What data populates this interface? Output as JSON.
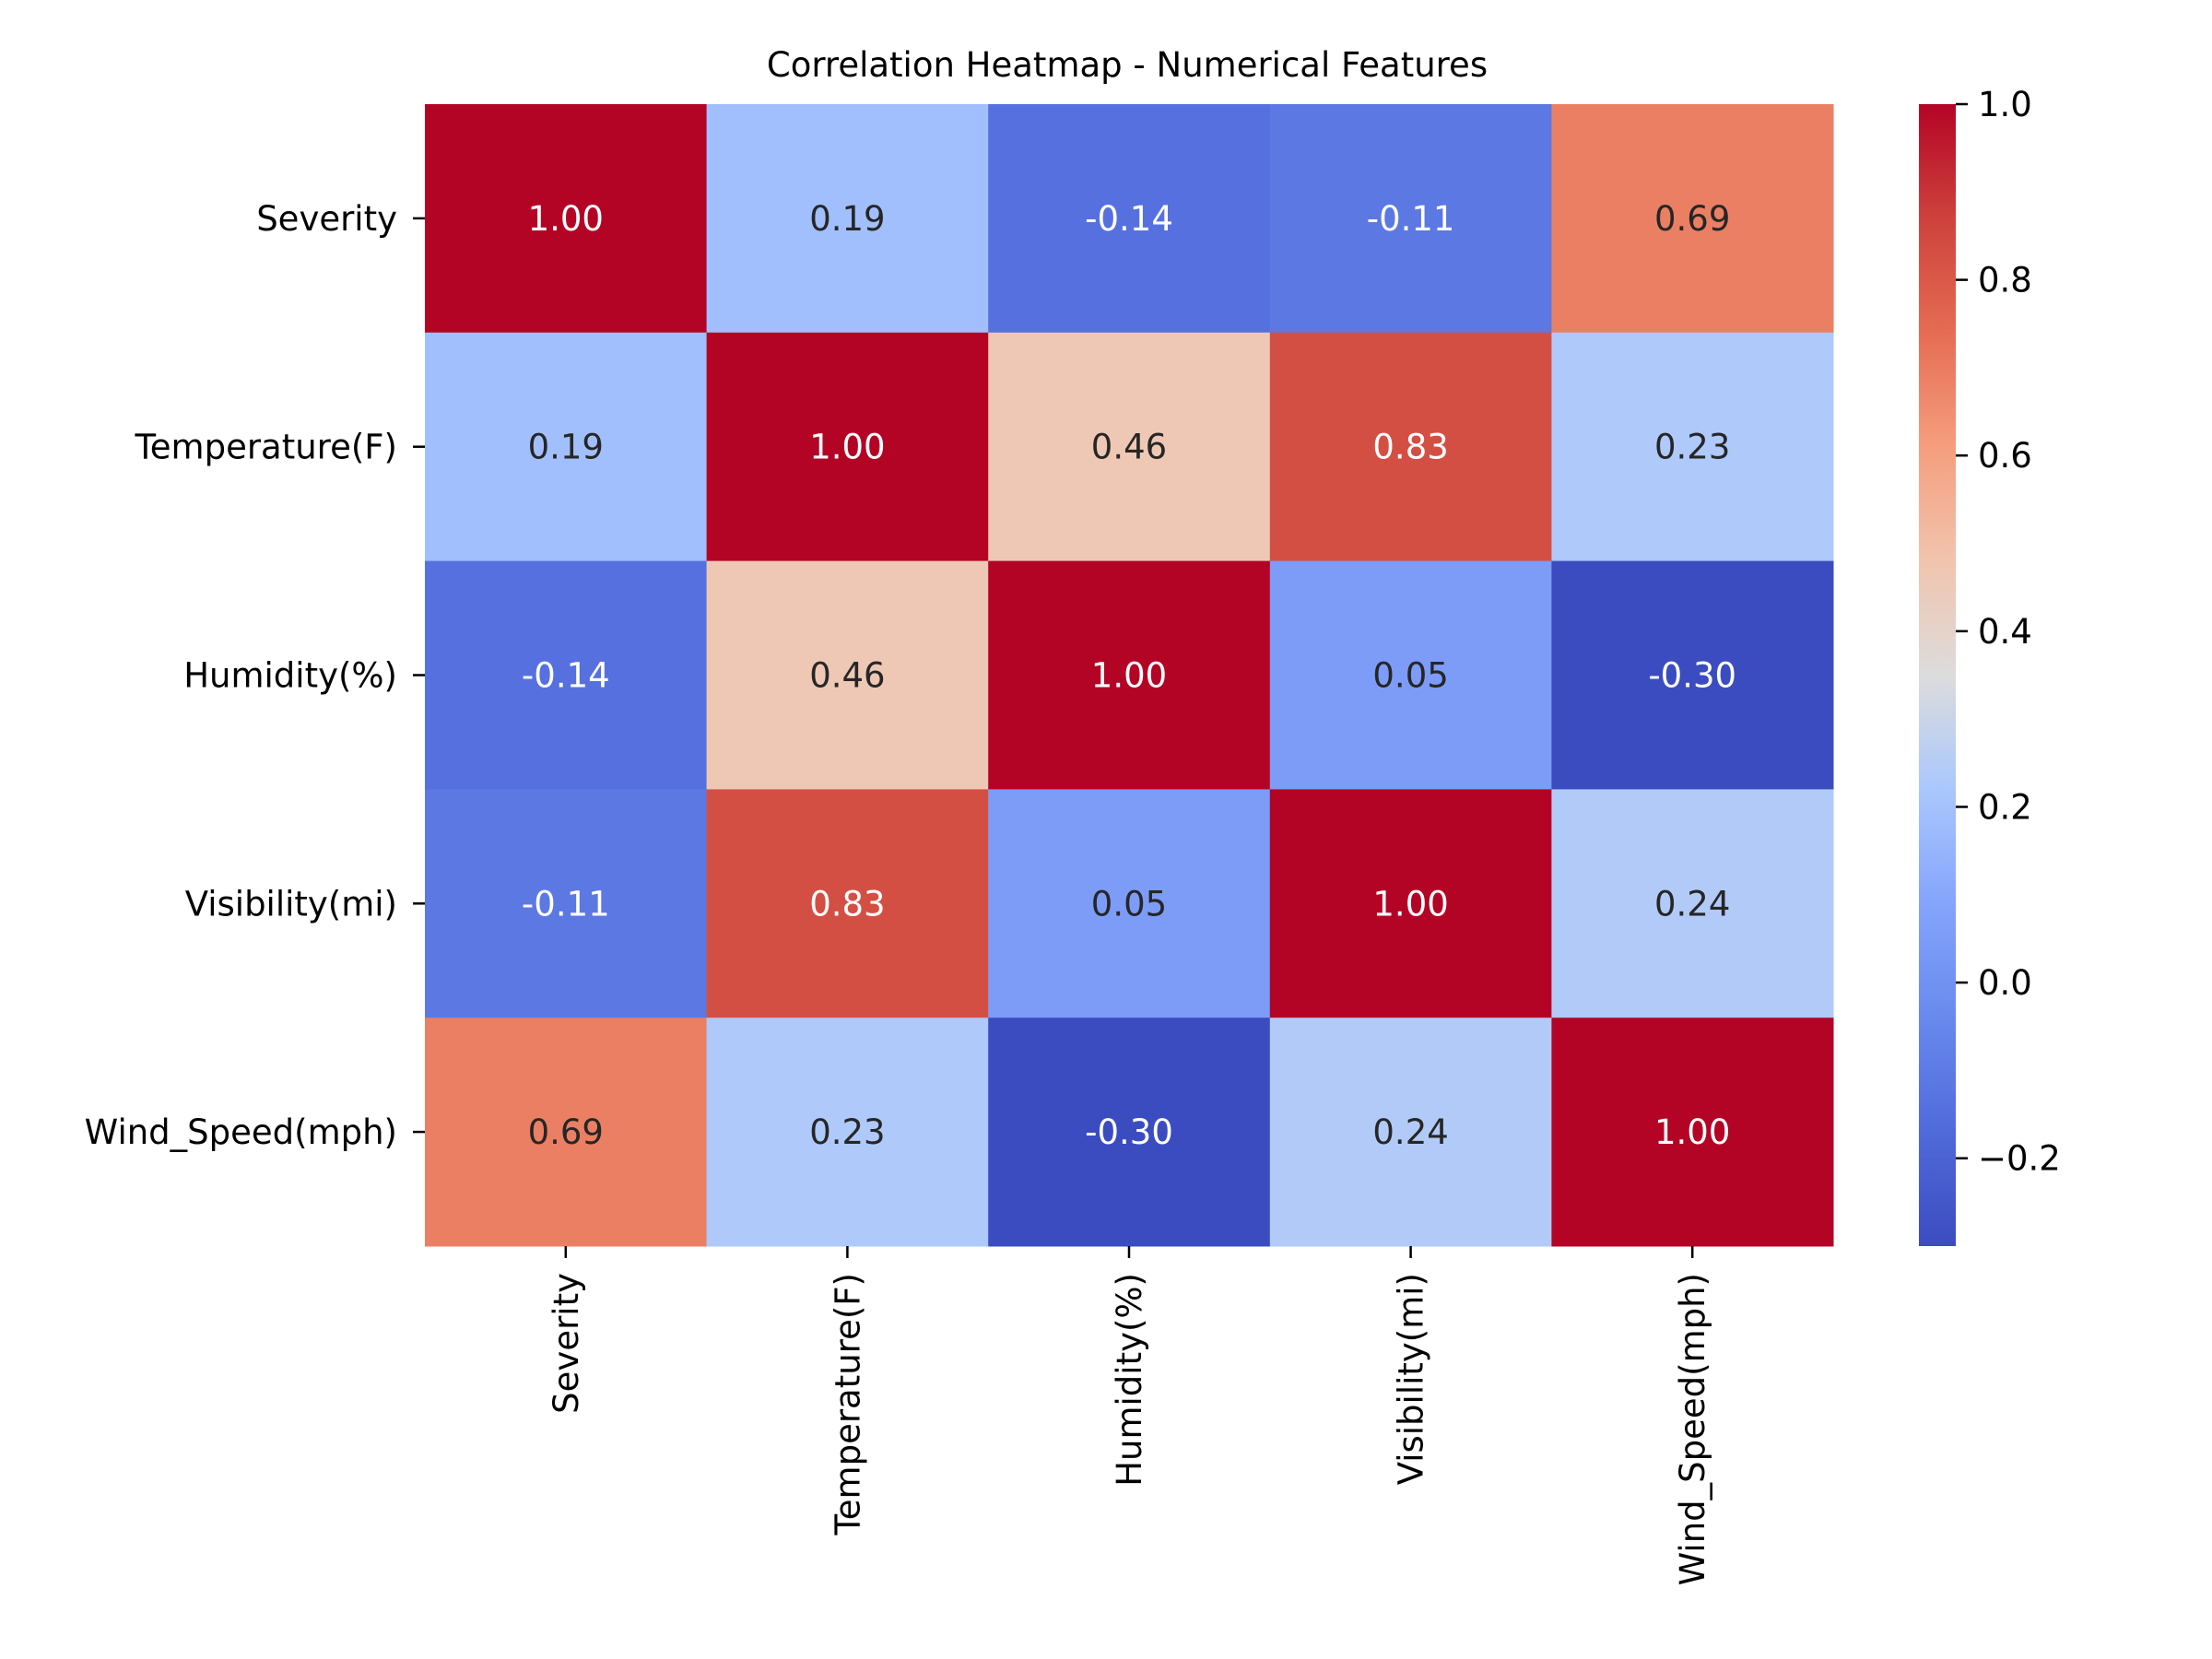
{
  "chart_data": {
    "type": "heatmap",
    "title": "Correlation Heatmap - Numerical Features",
    "xlabel": "",
    "ylabel": "",
    "rows": [
      "Severity",
      "Temperature(F)",
      "Humidity(%)",
      "Visibility(mi)",
      "Wind_Speed(mph)"
    ],
    "columns": [
      "Severity",
      "Temperature(F)",
      "Humidity(%)",
      "Visibility(mi)",
      "Wind_Speed(mph)"
    ],
    "values": [
      [
        1.0,
        0.19,
        -0.14,
        -0.11,
        0.69
      ],
      [
        0.19,
        1.0,
        0.46,
        0.83,
        0.23
      ],
      [
        -0.14,
        0.46,
        1.0,
        0.05,
        -0.3
      ],
      [
        -0.11,
        0.83,
        0.05,
        1.0,
        0.24
      ],
      [
        0.69,
        0.23,
        -0.3,
        0.24,
        1.0
      ]
    ],
    "value_format": "0.00",
    "colormap": "coolwarm",
    "colorbar": {
      "range": [
        -0.3,
        1.0
      ],
      "ticks": [
        1.0,
        0.8,
        0.6,
        0.4,
        0.2,
        0.0,
        -0.2
      ],
      "tick_labels": [
        "1.0",
        "0.8",
        "0.6",
        "0.4",
        "0.2",
        "0.0",
        "−0.2"
      ]
    },
    "grid": false,
    "legend": "colorbar-right"
  }
}
